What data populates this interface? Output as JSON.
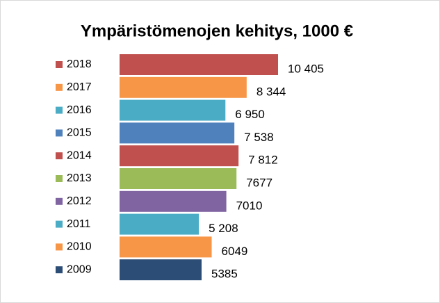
{
  "chart_data": {
    "type": "bar",
    "orientation": "horizontal",
    "title": "Ympäristömenojen kehitys, 1000 €",
    "categories": [
      "2018",
      "2017",
      "2016",
      "2015",
      "2014",
      "2013",
      "2012",
      "2011",
      "2010",
      "2009"
    ],
    "values": [
      10405,
      8344,
      6950,
      7538,
      7812,
      7677,
      7010,
      5208,
      6049,
      5385
    ],
    "value_labels": [
      "10 405",
      "8 344",
      "6 950",
      "7 538",
      "7 812",
      "7677",
      "7010",
      "5 208",
      "6049",
      "5385"
    ],
    "colors": [
      "#c0504d",
      "#f79646",
      "#4bacc6",
      "#4f81bd",
      "#c0504d",
      "#9bbb59",
      "#8064a2",
      "#4bacc6",
      "#f79646",
      "#2c4d75"
    ]
  }
}
